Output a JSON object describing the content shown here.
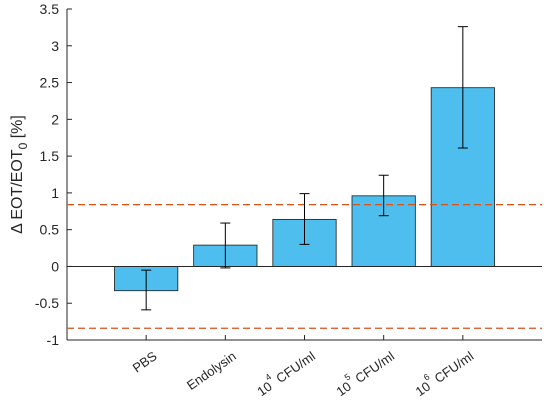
{
  "chart_data": {
    "type": "bar",
    "categories": [
      {
        "base": "PBS",
        "sup": "",
        "rest": ""
      },
      {
        "base": "Endolysin",
        "sup": "",
        "rest": ""
      },
      {
        "base": "10",
        "sup": "4",
        "rest": " CFU/ml"
      },
      {
        "base": "10",
        "sup": "5",
        "rest": " CFU/ml"
      },
      {
        "base": "10",
        "sup": "6",
        "rest": " CFU/ml"
      }
    ],
    "values": [
      -0.33,
      0.29,
      0.64,
      0.96,
      2.43
    ],
    "error_low": [
      -0.59,
      -0.02,
      0.3,
      0.69,
      1.61
    ],
    "error_high": [
      -0.05,
      0.59,
      0.99,
      1.24,
      3.26
    ],
    "threshold_lines": [
      0.84,
      -0.84
    ],
    "ylabel": {
      "prefix": "Δ EOT/EOT",
      "sub": "0",
      "suffix": " [%]"
    },
    "ylim": [
      -1,
      3.5
    ],
    "yticks": [
      -1,
      -0.5,
      0,
      0.5,
      1,
      1.5,
      2,
      2.5,
      3,
      3.5
    ],
    "ytick_labels": [
      "-1",
      "-0.5",
      "0",
      "0.5",
      "1",
      "1.5",
      "2",
      "2.5",
      "3",
      "3.5"
    ],
    "colors": {
      "bar": "#4dbeee",
      "bar_edge": "#1a1a1a",
      "threshold": "#d95319",
      "axis": "#262626"
    }
  }
}
